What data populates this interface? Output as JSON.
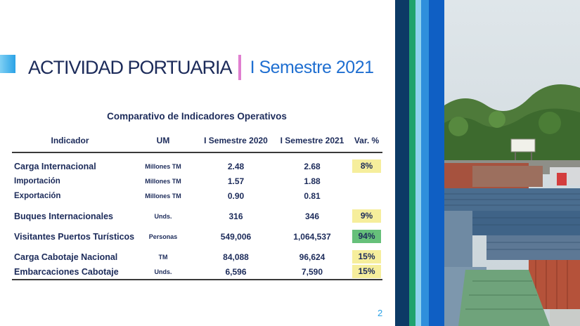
{
  "header": {
    "title": "ACTIVIDAD PORTUARIA",
    "subtitle": "I Semestre 2021"
  },
  "table": {
    "caption": "Comparativo de Indicadores Operativos",
    "columns": [
      "Indicador",
      "UM",
      "I Semestre 2020",
      "I Semestre 2021",
      "Var. %"
    ],
    "rows": [
      {
        "indicator": "Carga Internacional",
        "um": "Millones TM",
        "s2020": "2.48",
        "s2021": "2.68",
        "var": "8%"
      },
      {
        "indicator": "Importación",
        "um": "Millones TM",
        "s2020": "1.57",
        "s2021": "1.88",
        "var": ""
      },
      {
        "indicator": "Exportación",
        "um": "Millones TM",
        "s2020": "0.90",
        "s2021": "0.81",
        "var": ""
      },
      {
        "indicator": "Buques Internacionales",
        "um": "Unds.",
        "s2020": "316",
        "s2021": "346",
        "var": "9%"
      },
      {
        "indicator": "Visitantes Puertos Turísticos",
        "um": "Personas",
        "s2020": "549,006",
        "s2021": "1,064,537",
        "var": "94%"
      },
      {
        "indicator": "Carga Cabotaje Nacional",
        "um": "TM",
        "s2020": "84,088",
        "s2021": "96,624",
        "var": "15%"
      },
      {
        "indicator": "Embarcaciones Cabotaje",
        "um": "Unds.",
        "s2020": "6,596",
        "s2021": "7,590",
        "var": "15%"
      }
    ]
  },
  "colors": {
    "var_highlight": "#f6ee9c",
    "var_highlight_strong": "#66c07a",
    "title_main": "#1c2b5a",
    "title_sub": "#1f6fd1"
  },
  "page_number": "2"
}
